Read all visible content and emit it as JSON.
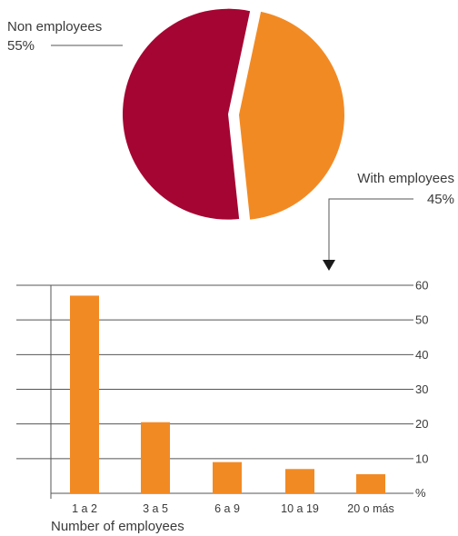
{
  "chart_data": [
    {
      "type": "pie",
      "categories": [
        "Non employees",
        "With employees"
      ],
      "values": [
        55,
        45
      ],
      "value_labels": [
        "55%",
        "45%"
      ],
      "colors": [
        "#a50532",
        "#f28a24"
      ],
      "exploded": true
    },
    {
      "type": "bar",
      "categories": [
        "1 a 2",
        "3 a 5",
        "6 a 9",
        "10 a 19",
        "20 o más"
      ],
      "values": [
        57,
        20.5,
        9,
        7,
        5.5
      ],
      "xlabel": "Number of employees",
      "ylabel": "",
      "y_unit_label": "%",
      "ylim": [
        0,
        60
      ],
      "yticks": [
        "60",
        "50",
        "40",
        "30",
        "20",
        "10"
      ],
      "grid": true,
      "color": "#f28a24"
    }
  ]
}
